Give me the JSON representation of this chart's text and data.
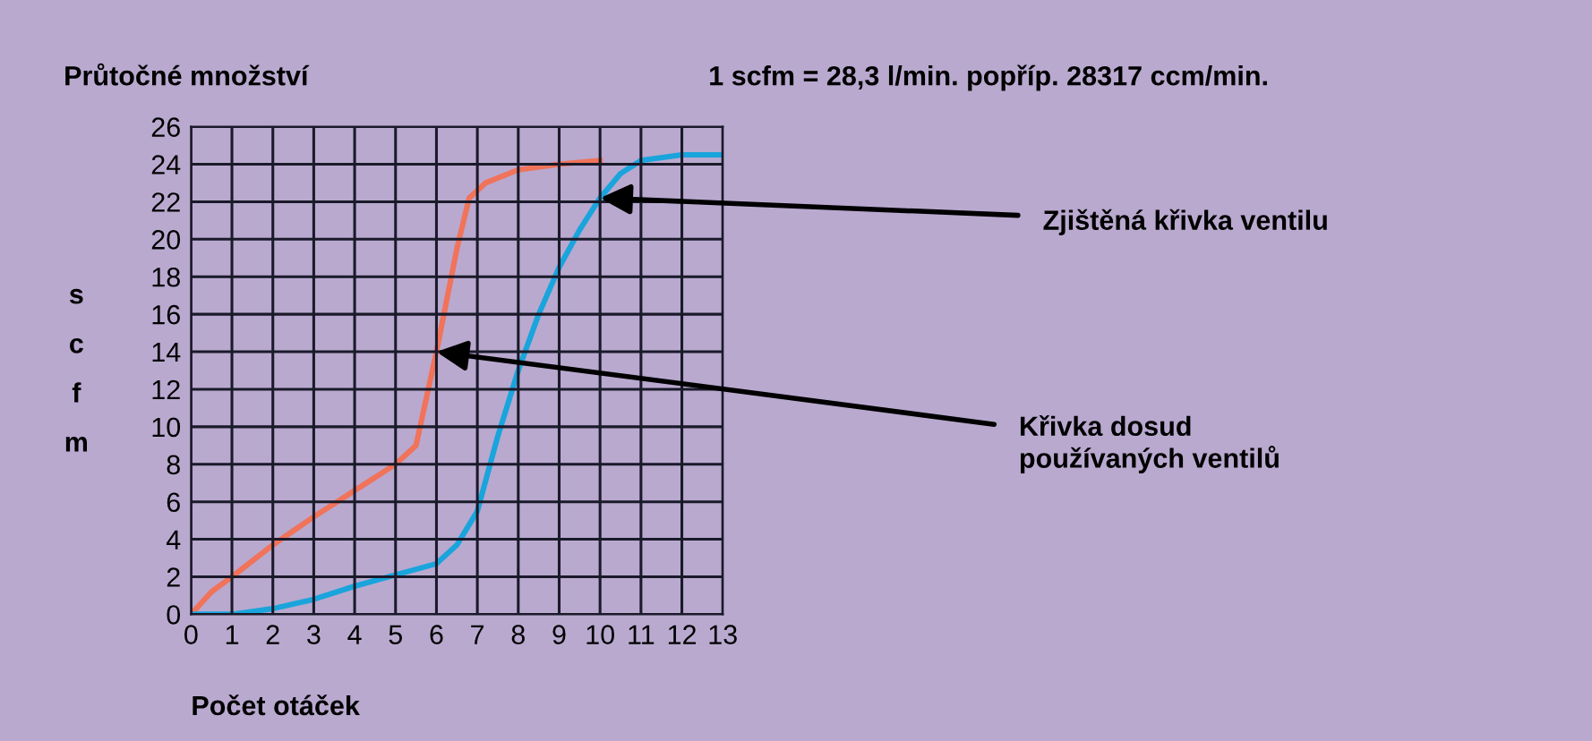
{
  "chart_data": {
    "type": "line",
    "title": "Průtočné množství",
    "subtitle": "1 scfm = 28,3 l/min. popříp. 28317 ccm/min.",
    "xlabel": "Počet otáček",
    "ylabel": "scfm",
    "series": [
      {
        "color": "#f0735a",
        "x": [
          0,
          0.5,
          1,
          2,
          3,
          4,
          5,
          5.5,
          6,
          6.5,
          6.8,
          7.2,
          8,
          9,
          10
        ],
        "values": [
          0,
          1.2,
          2,
          3.7,
          5.2,
          6.6,
          8,
          9,
          14,
          19.5,
          22.2,
          23,
          23.7,
          24,
          24.2
        ]
      },
      {
        "color": "#1aa4dc",
        "x": [
          0,
          1,
          2,
          3,
          4,
          5,
          6,
          6.5,
          7,
          7.5,
          8,
          8.5,
          9,
          9.5,
          10,
          10.5,
          11,
          12,
          13
        ],
        "values": [
          0,
          0,
          0.3,
          0.8,
          1.5,
          2.1,
          2.7,
          3.7,
          5.5,
          9.5,
          13,
          16,
          18.5,
          20.5,
          22.2,
          23.5,
          24.2,
          24.5,
          24.5
        ]
      }
    ],
    "annotations": [
      {
        "text": "Zjištěná křivka ventilu",
        "x": 10,
        "y": 22.2
      },
      {
        "text": "Křivka dosud\npoužívaných ventilů",
        "x": 6,
        "y": 14
      }
    ],
    "xlim": [
      0,
      13
    ],
    "xticks": [
      0,
      1,
      2,
      3,
      4,
      5,
      6,
      7,
      8,
      9,
      10,
      11,
      12,
      13
    ],
    "ylim": [
      0,
      26
    ],
    "yticks": [
      0,
      2,
      4,
      6,
      8,
      10,
      12,
      14,
      16,
      18,
      20,
      22,
      24,
      26
    ],
    "grid": true,
    "legend": false,
    "marker": "none",
    "line_style": "solid"
  }
}
